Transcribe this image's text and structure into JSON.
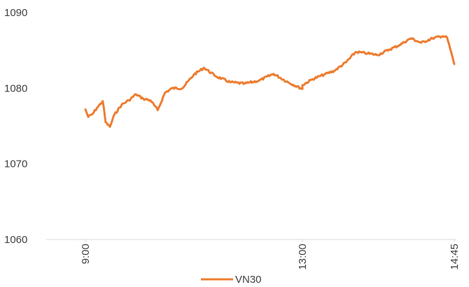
{
  "chart_data": {
    "type": "line",
    "title": "",
    "xlabel": "",
    "ylabel": "",
    "ylim": [
      1060,
      1090
    ],
    "yticks": [
      1060,
      1070,
      1080,
      1090
    ],
    "xticks": [
      "9:00",
      "13:00",
      "14:45"
    ],
    "legend_position": "bottom",
    "grid": false,
    "series": [
      {
        "name": "VN30",
        "color": "#ED7D31",
        "points": [
          [
            "9:00",
            1077.2
          ],
          [
            "9:02",
            1076.2
          ],
          [
            "9:05",
            1076.6
          ],
          [
            "9:08",
            1077.4
          ],
          [
            "9:12",
            1078.3
          ],
          [
            "9:14",
            1075.5
          ],
          [
            "9:17",
            1074.9
          ],
          [
            "9:20",
            1076.5
          ],
          [
            "9:25",
            1077.8
          ],
          [
            "9:30",
            1078.4
          ],
          [
            "9:35",
            1079.2
          ],
          [
            "9:40",
            1078.6
          ],
          [
            "9:45",
            1078.4
          ],
          [
            "9:50",
            1077.1
          ],
          [
            "9:55",
            1079.4
          ],
          [
            "10:00",
            1080.0
          ],
          [
            "10:07",
            1080.0
          ],
          [
            "10:15",
            1081.8
          ],
          [
            "10:22",
            1082.7
          ],
          [
            "10:30",
            1081.6
          ],
          [
            "10:40",
            1080.8
          ],
          [
            "10:50",
            1080.6
          ],
          [
            "11:00",
            1081.0
          ],
          [
            "11:10",
            1081.9
          ],
          [
            "11:20",
            1080.8
          ],
          [
            "11:30",
            1079.9
          ],
          [
            "13:00",
            1080.4
          ],
          [
            "13:07",
            1081.2
          ],
          [
            "13:15",
            1081.8
          ],
          [
            "13:22",
            1082.3
          ],
          [
            "13:30",
            1083.4
          ],
          [
            "13:37",
            1084.8
          ],
          [
            "13:45",
            1084.6
          ],
          [
            "13:52",
            1084.4
          ],
          [
            "14:00",
            1085.1
          ],
          [
            "14:07",
            1085.7
          ],
          [
            "14:15",
            1086.6
          ],
          [
            "14:22",
            1086.0
          ],
          [
            "14:30",
            1086.6
          ],
          [
            "14:37",
            1086.9
          ],
          [
            "14:40",
            1086.7
          ],
          [
            "14:45",
            1083.2
          ]
        ]
      }
    ]
  }
}
